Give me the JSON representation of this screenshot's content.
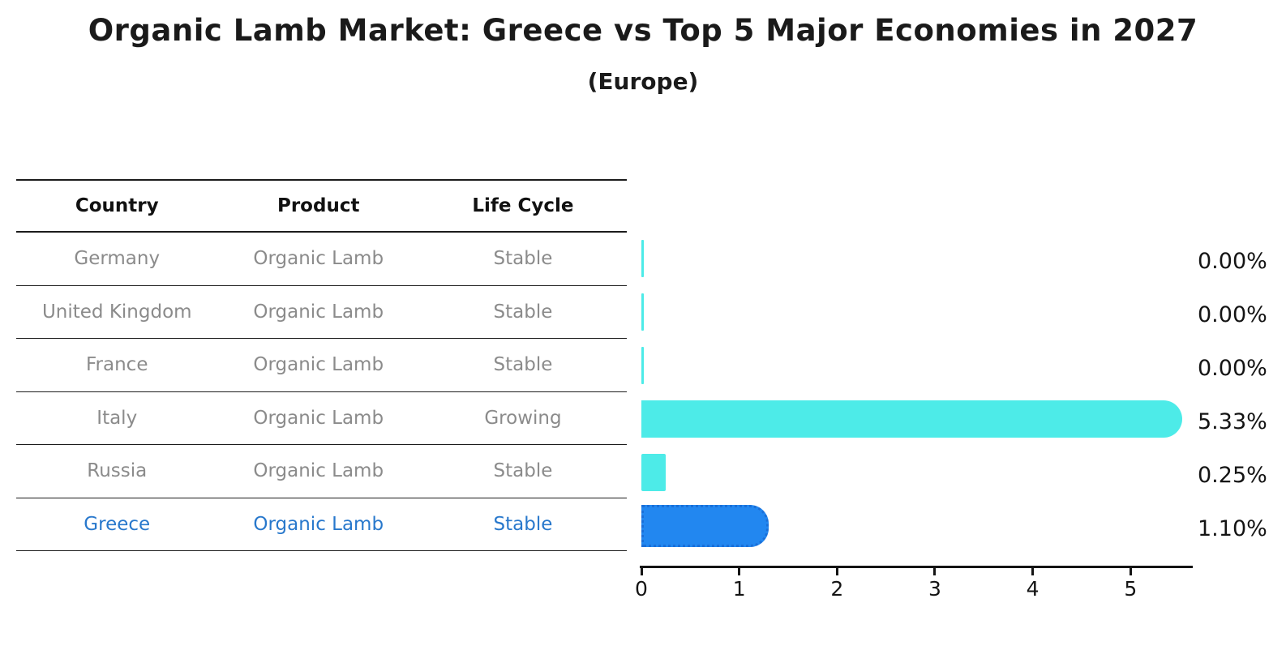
{
  "header": {
    "title": "Organic Lamb Market: Greece vs Top 5 Major Economies in 2027",
    "subtitle": "(Europe)"
  },
  "table": {
    "headers": [
      "Country",
      "Product",
      "Life Cycle"
    ],
    "rows": [
      {
        "country": "Germany",
        "product": "Organic Lamb",
        "life_cycle": "Stable",
        "highlighted": false
      },
      {
        "country": "United Kingdom",
        "product": "Organic Lamb",
        "life_cycle": "Stable",
        "highlighted": false
      },
      {
        "country": "France",
        "product": "Organic Lamb",
        "life_cycle": "Stable",
        "highlighted": false
      },
      {
        "country": "Italy",
        "product": "Organic Lamb",
        "life_cycle": "Growing",
        "highlighted": false
      },
      {
        "country": "Russia",
        "product": "Organic Lamb",
        "life_cycle": "Stable",
        "highlighted": false
      },
      {
        "country": "Greece",
        "product": "Organic Lamb",
        "life_cycle": "Stable",
        "highlighted": true
      }
    ]
  },
  "chart_data": {
    "type": "bar",
    "orientation": "horizontal",
    "title": "Organic Lamb Market: Greece vs Top 5 Major Economies in 2027",
    "subtitle": "(Europe)",
    "categories": [
      "Germany",
      "United Kingdom",
      "France",
      "Italy",
      "Russia",
      "Greece"
    ],
    "values": [
      0.0,
      0.0,
      0.0,
      5.33,
      0.25,
      1.1
    ],
    "value_labels": [
      "0.00%",
      "0.00%",
      "0.00%",
      "5.33%",
      "0.25%",
      "1.10%"
    ],
    "xlabel": "",
    "ylabel": "",
    "xlim": [
      0,
      5.62
    ],
    "xticks": [
      "0",
      "1",
      "2",
      "3",
      "4",
      "5"
    ],
    "grid": false,
    "legend": null,
    "highlight_category": "Greece",
    "colors": {
      "bar_default": "#4DEBE8",
      "bar_highlight": "#2287F0",
      "bar_highlight_border": "#1A6FD8",
      "table_text_default": "#8B8B8B",
      "table_text_highlight": "#2878CC",
      "axis": "#141414",
      "title": "#1A1A1A"
    }
  }
}
